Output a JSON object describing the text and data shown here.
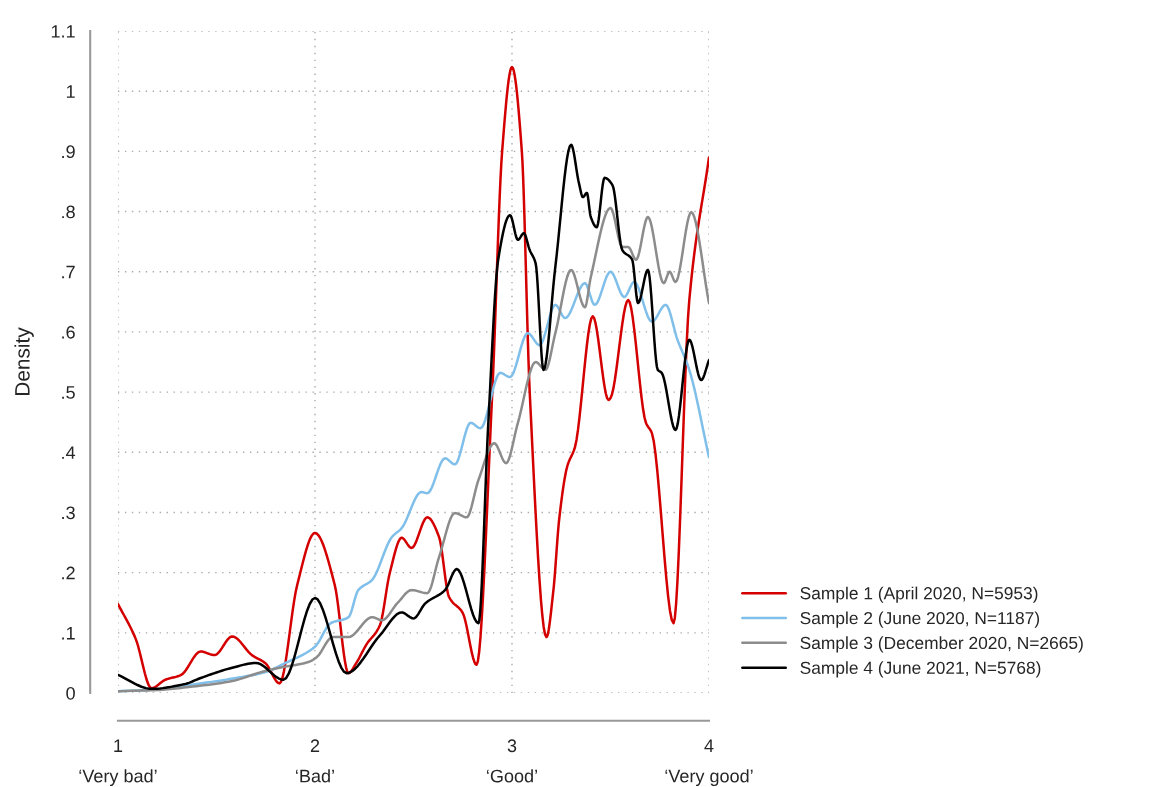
{
  "chart_data": {
    "type": "line",
    "ylabel": "Density",
    "xlim": [
      1,
      4
    ],
    "ylim": [
      0,
      1.1
    ],
    "xticks": [
      1,
      2,
      3,
      4
    ],
    "annotations": [
      "‘Very bad’",
      "‘Bad’",
      "‘Good’",
      "‘Very good’"
    ],
    "yticks": [
      {
        "value": 0,
        "label": "0"
      },
      {
        "value": 0.1,
        "label": ".1"
      },
      {
        "value": 0.2,
        "label": ".2"
      },
      {
        "value": 0.3,
        "label": ".3"
      },
      {
        "value": 0.4,
        "label": ".4"
      },
      {
        "value": 0.5,
        "label": ".5"
      },
      {
        "value": 0.6,
        "label": ".6"
      },
      {
        "value": 0.7,
        "label": ".7"
      },
      {
        "value": 0.8,
        "label": ".8"
      },
      {
        "value": 0.9,
        "label": ".9"
      },
      {
        "value": 1,
        "label": "1"
      },
      {
        "value": 1.1,
        "label": "1.1"
      }
    ],
    "grid": true,
    "legend": "right",
    "marker": "none",
    "line_style": "solid",
    "series": [
      {
        "name": "Sample 1 (April 2020, N=5953)",
        "color": "#d40000",
        "x": [
          1.0,
          1.09,
          1.17,
          1.24,
          1.32,
          1.42,
          1.49,
          1.58,
          1.68,
          1.75,
          1.82,
          1.91,
          2.0,
          2.1,
          2.17,
          2.21,
          2.26,
          2.33,
          2.38,
          2.44,
          2.49,
          2.57,
          2.63,
          2.68,
          2.75,
          2.82,
          2.9,
          2.95,
          3.0,
          3.05,
          3.09,
          3.175,
          3.21,
          3.24,
          3.28,
          3.32,
          3.41,
          3.49,
          3.5,
          3.59,
          3.68,
          3.71,
          3.82,
          3.9,
          4.0
        ],
        "values": [
          0.148,
          0.09,
          0.008,
          0.022,
          0.03,
          0.069,
          0.063,
          0.094,
          0.063,
          0.049,
          0.016,
          0.18,
          0.266,
          0.18,
          0.033,
          0.05,
          0.08,
          0.113,
          0.2,
          0.258,
          0.241,
          0.292,
          0.259,
          0.16,
          0.133,
          0.047,
          0.5,
          0.9,
          1.04,
          0.9,
          0.5,
          0.093,
          0.17,
          0.29,
          0.376,
          0.409,
          0.626,
          0.487,
          0.49,
          0.653,
          0.449,
          0.432,
          0.116,
          0.653,
          0.89
        ]
      },
      {
        "name": "Sample 2 (June 2020, N=1187)",
        "color": "#7fbfea",
        "x": [
          1.0,
          1.2,
          1.4,
          1.6,
          1.75,
          1.85,
          2.0,
          2.08,
          2.17,
          2.22,
          2.29,
          2.39,
          2.44,
          2.54,
          2.57,
          2.66,
          2.71,
          2.79,
          2.84,
          2.94,
          2.99,
          3.08,
          3.14,
          3.22,
          3.27,
          3.37,
          3.42,
          3.5,
          3.57,
          3.62,
          3.71,
          3.78,
          3.84,
          3.9,
          4.0
        ],
        "values": [
          0.003,
          0.006,
          0.015,
          0.025,
          0.035,
          0.05,
          0.077,
          0.116,
          0.126,
          0.171,
          0.188,
          0.259,
          0.274,
          0.334,
          0.332,
          0.39,
          0.38,
          0.449,
          0.44,
          0.532,
          0.525,
          0.598,
          0.578,
          0.645,
          0.623,
          0.681,
          0.645,
          0.7,
          0.658,
          0.683,
          0.617,
          0.645,
          0.587,
          0.537,
          0.392
        ]
      },
      {
        "name": "Sample 3 (December 2020, N=2665)",
        "color": "#8c8c8c",
        "x": [
          1.0,
          1.2,
          1.36,
          1.58,
          1.73,
          1.82,
          1.97,
          2.01,
          2.09,
          2.17,
          2.29,
          2.34,
          2.42,
          2.49,
          2.57,
          2.63,
          2.71,
          2.77,
          2.83,
          2.91,
          2.97,
          3.03,
          3.12,
          3.17,
          3.22,
          3.3,
          3.37,
          3.4,
          3.5,
          3.56,
          3.59,
          3.63,
          3.69,
          3.77,
          3.8,
          3.83,
          3.91,
          4.0
        ],
        "values": [
          0.003,
          0.005,
          0.01,
          0.02,
          0.035,
          0.042,
          0.052,
          0.06,
          0.093,
          0.093,
          0.126,
          0.121,
          0.15,
          0.171,
          0.166,
          0.226,
          0.299,
          0.292,
          0.354,
          0.415,
          0.382,
          0.449,
          0.55,
          0.537,
          0.598,
          0.703,
          0.641,
          0.691,
          0.806,
          0.741,
          0.741,
          0.72,
          0.791,
          0.681,
          0.7,
          0.683,
          0.799,
          0.648
        ]
      },
      {
        "name": "Sample 4 (June 2021, N=5768)",
        "color": "#000000",
        "x": [
          1.0,
          1.17,
          1.34,
          1.42,
          1.58,
          1.7,
          1.84,
          2.0,
          2.16,
          2.33,
          2.44,
          2.5,
          2.56,
          2.66,
          2.72,
          2.83,
          2.88,
          2.93,
          2.99,
          3.03,
          3.06,
          3.09,
          3.12,
          3.16,
          3.22,
          3.3,
          3.34,
          3.36,
          3.38,
          3.4,
          3.43,
          3.47,
          3.51,
          3.56,
          3.61,
          3.64,
          3.69,
          3.74,
          3.76,
          3.83,
          3.9,
          3.96,
          4.0
        ],
        "values": [
          0.03,
          0.007,
          0.015,
          0.025,
          0.042,
          0.05,
          0.022,
          0.158,
          0.033,
          0.096,
          0.134,
          0.124,
          0.149,
          0.171,
          0.206,
          0.116,
          0.45,
          0.72,
          0.794,
          0.753,
          0.764,
          0.736,
          0.714,
          0.537,
          0.708,
          0.911,
          0.847,
          0.824,
          0.831,
          0.791,
          0.774,
          0.856,
          0.844,
          0.736,
          0.72,
          0.648,
          0.703,
          0.537,
          0.532,
          0.437,
          0.587,
          0.52,
          0.553
        ]
      }
    ]
  }
}
